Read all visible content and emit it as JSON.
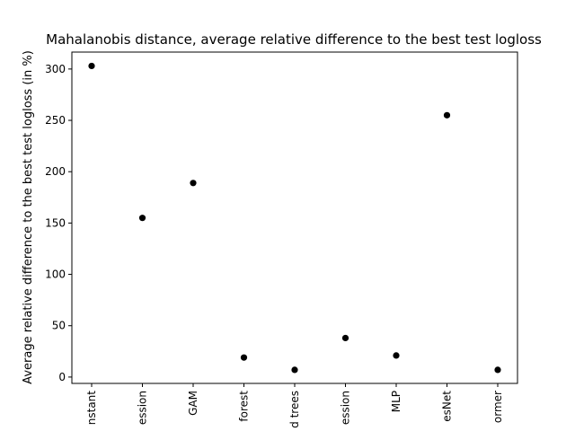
{
  "chart_data": {
    "type": "scatter",
    "title": "Mahalanobis distance, average relative difference to the best test logloss",
    "xlabel": "",
    "ylabel": "Average relative difference to the best test logloss (in %)",
    "categories": [
      "Constant",
      "Logistic regression",
      "GAM",
      "Random forest",
      "Gradient boosted trees",
      "Ridge regression",
      "MLP",
      "ResNet",
      "Transformer"
    ],
    "tick_labels": [
      "nstant",
      "ession",
      "GAM",
      "forest",
      "d trees",
      "ession",
      "MLP",
      "esNet",
      "ormer"
    ],
    "values": [
      303,
      155,
      189,
      19,
      7,
      38,
      21,
      255,
      7
    ],
    "ylim": [
      -6.2,
      316.5
    ],
    "yticks": [
      0,
      50,
      100,
      150,
      200,
      250,
      300
    ],
    "grid": false,
    "marker_color": "#000000"
  }
}
